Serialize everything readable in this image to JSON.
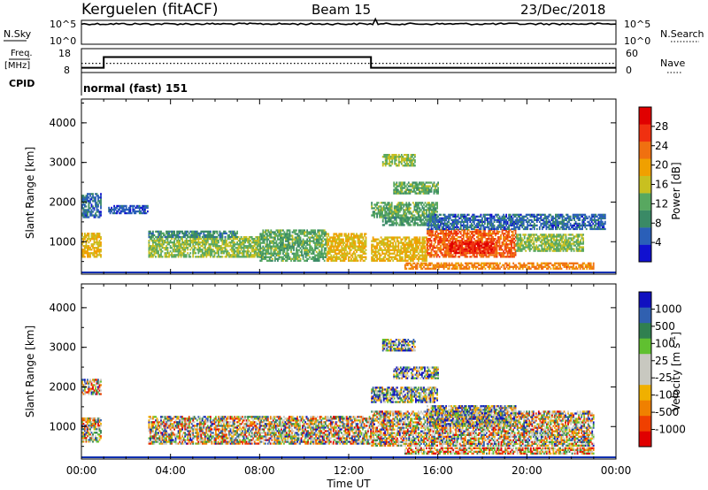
{
  "header": {
    "station": "Kerguelen (fitACF)",
    "beam": "Beam 15",
    "date": "23/Dec/2018"
  },
  "nsky_panel": {
    "left_label": "N.Sky",
    "left_ticks": [
      "10^5",
      "10^0"
    ],
    "right_label": "N.Search",
    "right_ticks": [
      "10^5",
      "10^0"
    ]
  },
  "freq_panel": {
    "left_label_1": "Freq.",
    "left_label_2": "[MHz]",
    "left_ticks": [
      "18",
      "8"
    ],
    "right_label": "Nave",
    "right_ticks": [
      "60",
      "0"
    ],
    "cpid_label": "CPID",
    "cpid_text": "normal (fast) 151"
  },
  "colors": {
    "power_scale": [
      "#1010d0",
      "#2a5fb8",
      "#3a8a66",
      "#58a860",
      "#c8c020",
      "#f0a000",
      "#f07010",
      "#f03010",
      "#e00000"
    ],
    "velocity_scale": [
      "#e00000",
      "#f04000",
      "#f08000",
      "#f0b000",
      "#c8c8c0",
      "#c8c8c0",
      "#60c030",
      "#308050",
      "#3060b0",
      "#1010c0"
    ]
  },
  "chart_data": [
    {
      "type": "heatmap",
      "name": "power",
      "x_unit": "hours UT",
      "xlim": [
        0,
        24
      ],
      "ylabel": "Slant Range [km]",
      "ylim": [
        180,
        4600
      ],
      "yticks": [
        "1000",
        "2000",
        "3000",
        "4000"
      ],
      "xticks": [
        "00:00",
        "04:00",
        "08:00",
        "12:00",
        "16:00",
        "20:00",
        "00:00"
      ],
      "colorbar_label": "Power [dB]",
      "colorbar_ticks": [
        "4",
        "8",
        "12",
        "16",
        "20",
        "24",
        "28"
      ],
      "colorbar_range": [
        0,
        32
      ],
      "regions": [
        {
          "t0": 0.0,
          "t1": 0.9,
          "r0": 600,
          "r1": 1200,
          "v": 18
        },
        {
          "t0": 0.0,
          "t1": 0.9,
          "r0": 1600,
          "r1": 2200,
          "v": 6
        },
        {
          "t0": 3.0,
          "t1": 8.0,
          "r0": 600,
          "r1": 1100,
          "v": 14
        },
        {
          "t0": 3.0,
          "t1": 7.0,
          "r0": 1100,
          "r1": 1250,
          "v": 9
        },
        {
          "t0": 8.0,
          "t1": 11.0,
          "r0": 500,
          "r1": 1300,
          "v": 12
        },
        {
          "t0": 11.0,
          "t1": 12.8,
          "r0": 500,
          "r1": 1200,
          "v": 18
        },
        {
          "t0": 13.0,
          "t1": 16.0,
          "r0": 1600,
          "r1": 2000,
          "v": 12
        },
        {
          "t0": 13.5,
          "t1": 16.0,
          "r0": 1400,
          "r1": 1600,
          "v": 10
        },
        {
          "t0": 13.0,
          "t1": 15.5,
          "r0": 500,
          "r1": 1100,
          "v": 18
        },
        {
          "t0": 15.5,
          "t1": 19.5,
          "r0": 600,
          "r1": 1300,
          "v": 24
        },
        {
          "t0": 16.5,
          "t1": 18.5,
          "r0": 700,
          "r1": 1000,
          "v": 28
        },
        {
          "t0": 19.5,
          "t1": 22.5,
          "r0": 750,
          "r1": 1200,
          "v": 14
        },
        {
          "t0": 14.5,
          "t1": 23.0,
          "r0": 300,
          "r1": 480,
          "v": 22
        },
        {
          "t0": 14.0,
          "t1": 16.0,
          "r0": 2200,
          "r1": 2500,
          "v": 12
        },
        {
          "t0": 13.5,
          "t1": 15.0,
          "r0": 2900,
          "r1": 3200,
          "v": 14
        },
        {
          "t0": 15.5,
          "t1": 23.5,
          "r0": 1300,
          "r1": 1700,
          "v": 6
        },
        {
          "t0": 1.2,
          "t1": 3.0,
          "r0": 1700,
          "r1": 1900,
          "v": 5
        }
      ]
    },
    {
      "type": "heatmap",
      "name": "velocity",
      "x_unit": "hours UT",
      "xlim": [
        0,
        24
      ],
      "xlabel": "Time UT",
      "ylabel": "Slant Range [km]",
      "ylim": [
        180,
        4600
      ],
      "yticks": [
        "1000",
        "2000",
        "3000",
        "4000"
      ],
      "xticks": [
        "00:00",
        "04:00",
        "08:00",
        "12:00",
        "16:00",
        "20:00",
        "00:00"
      ],
      "colorbar_label": "Velocity [m s",
      "colorbar_label_sup": "-1",
      "colorbar_label_end": "]",
      "colorbar_ticks": [
        "1000",
        "500",
        "100",
        "25",
        "-25",
        "-100",
        "-500",
        "-1000"
      ],
      "regions": [
        {
          "t0": 0.0,
          "t1": 0.9,
          "r0": 600,
          "r1": 1200,
          "v": 0
        },
        {
          "t0": 3.0,
          "t1": 13.0,
          "r0": 550,
          "r1": 1250,
          "v": 0
        },
        {
          "t0": 13.0,
          "t1": 16.0,
          "r0": 1600,
          "r1": 2000,
          "v": 1
        },
        {
          "t0": 13.0,
          "t1": 23.0,
          "r0": 500,
          "r1": 1400,
          "v": 0
        },
        {
          "t0": 15.5,
          "t1": 19.5,
          "r0": 1000,
          "r1": 1500,
          "v": 1
        },
        {
          "t0": 14.5,
          "t1": 23.0,
          "r0": 300,
          "r1": 480,
          "v": -1
        },
        {
          "t0": 14.0,
          "t1": 16.0,
          "r0": 2200,
          "r1": 2500,
          "v": 1
        },
        {
          "t0": 13.5,
          "t1": 15.0,
          "r0": 2900,
          "r1": 3200,
          "v": 1
        },
        {
          "t0": 0.0,
          "t1": 0.9,
          "r0": 1800,
          "r1": 2200,
          "v": 0
        }
      ]
    },
    {
      "type": "line",
      "name": "nsky",
      "note_series": "N.Sky near top throughout, N.Search on same scale",
      "nsky_level": 0.85
    },
    {
      "type": "line",
      "name": "frequency",
      "x_unit": "hours UT",
      "freq_ylim": [
        8,
        18
      ],
      "freq_steps": [
        {
          "t0": 0.0,
          "t1": 1.0,
          "f": 10.0
        },
        {
          "t0": 1.0,
          "t1": 13.0,
          "f": 14.5
        },
        {
          "t0": 13.0,
          "t1": 24.0,
          "f": 10.0
        }
      ],
      "nave_ylim": [
        0,
        60
      ],
      "nave_level": 23
    }
  ]
}
